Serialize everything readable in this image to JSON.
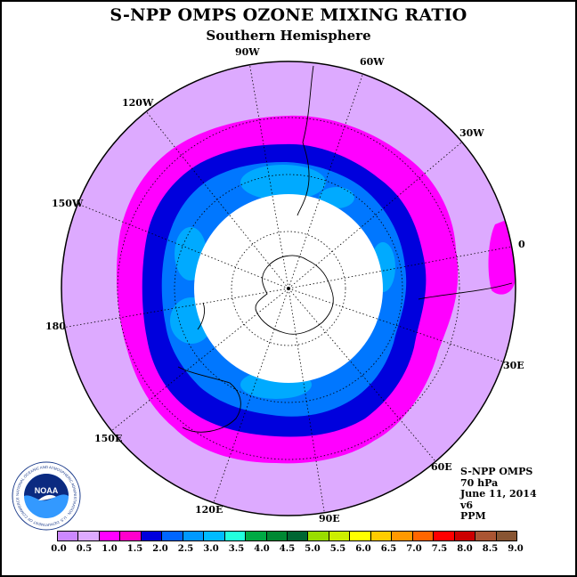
{
  "header": {
    "title": "S-NPP OMPS OZONE MIXING RATIO",
    "subtitle": "Southern Hemisphere"
  },
  "longitude_labels": [
    "90W",
    "60W",
    "30W",
    "0",
    "30E",
    "60E",
    "90E",
    "120E",
    "150E",
    "180",
    "150W",
    "120W"
  ],
  "info": {
    "instrument": "S-NPP OMPS",
    "level": "70 hPa",
    "date": "June 11, 2014",
    "version": "v6",
    "units": "PPM"
  },
  "logo": {
    "name": "NOAA",
    "ring_text": "NATIONAL OCEANIC AND ATMOSPHERIC ADMINISTRATION · U.S. DEPARTMENT OF COMMERCE"
  },
  "colorbar": {
    "colors": [
      "#cc88ff",
      "#ddaaff",
      "#ff00ff",
      "#ff00cc",
      "#0000dd",
      "#0066ff",
      "#0099ff",
      "#00bbff",
      "#22ffdd",
      "#00aa44",
      "#008833",
      "#006633",
      "#99dd00",
      "#ccee00",
      "#ffff00",
      "#ffcc00",
      "#ff9900",
      "#ff6600",
      "#ff0000",
      "#cc0000",
      "#aa5533",
      "#885533"
    ],
    "tick_labels": [
      "0.0",
      "0.5",
      "1.0",
      "1.5",
      "2.0",
      "2.5",
      "3.0",
      "3.5",
      "4.0",
      "4.5",
      "5.0",
      "5.5",
      "6.0",
      "6.5",
      "7.0",
      "7.5",
      "8.0",
      "8.5",
      "9.0"
    ]
  }
}
